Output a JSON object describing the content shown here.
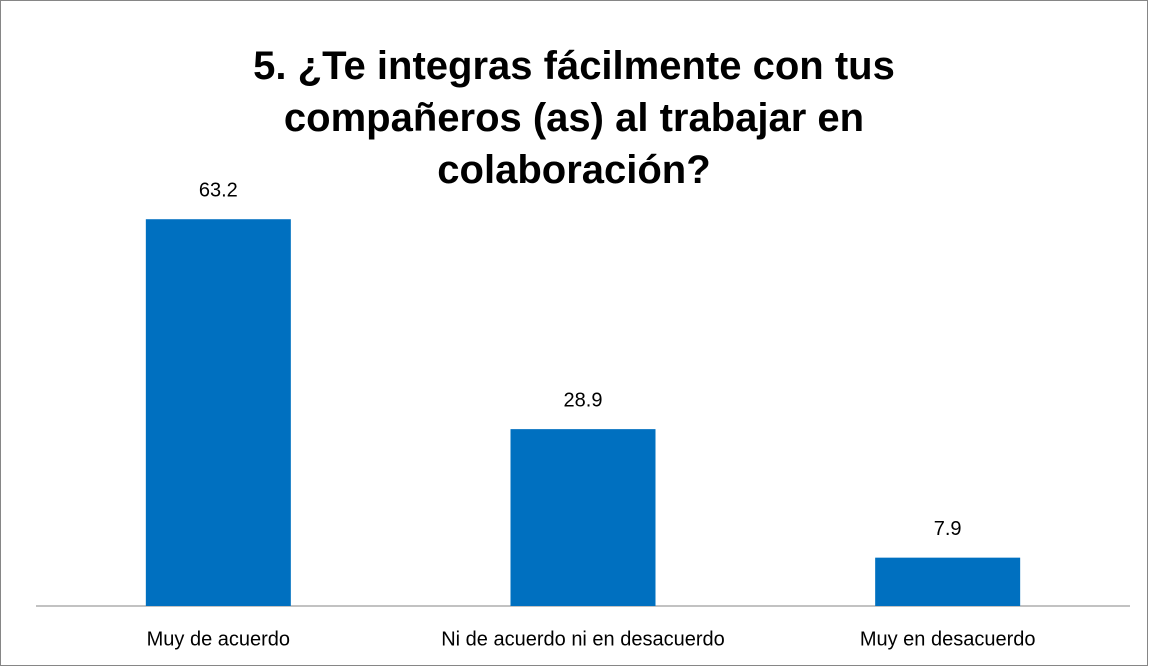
{
  "chart_data": {
    "type": "bar",
    "title": "5. ¿Te integras fácilmente con tus compañeros (as) al trabajar en colaboración?",
    "categories": [
      "Muy de acuerdo",
      "Ni de acuerdo ni en desacuerdo",
      "Muy en desacuerdo"
    ],
    "values": [
      63.2,
      28.9,
      7.9
    ],
    "color": "#0070c0",
    "ylim": [
      0,
      70
    ]
  }
}
